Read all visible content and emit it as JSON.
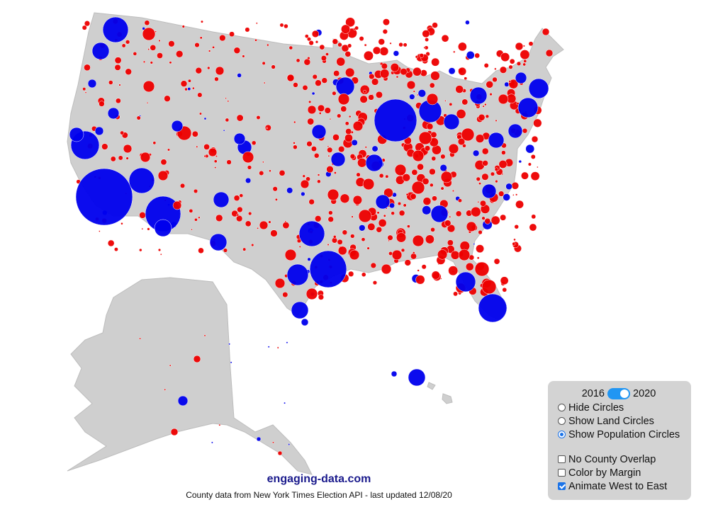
{
  "footer": {
    "brand": "engaging-data.com",
    "credit": "County data from New York Times Election API - last updated 12/08/20"
  },
  "controls": {
    "year_left": "2016",
    "year_right": "2020",
    "year_toggle_on": true,
    "radios": [
      {
        "label": "Hide Circles",
        "selected": false
      },
      {
        "label": "Show Land Circles",
        "selected": false
      },
      {
        "label": "Show Population Circles",
        "selected": true
      }
    ],
    "checkboxes": [
      {
        "label": "No County Overlap",
        "checked": false
      },
      {
        "label": "Color by Margin",
        "checked": false
      },
      {
        "label": "Animate West to East",
        "checked": true
      }
    ]
  },
  "colors": {
    "land": "#cfcfcf",
    "border": "#ffffff",
    "democrat": "#0000ee",
    "republican": "#ee0000"
  }
}
